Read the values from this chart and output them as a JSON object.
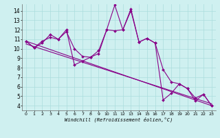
{
  "xlabel": "Windchill (Refroidissement éolien,°C)",
  "background_color": "#cff0f0",
  "line_color": "#880088",
  "marker": "D",
  "markersize": 2.0,
  "linewidth": 0.8,
  "xlim": [
    -0.5,
    23.5
  ],
  "ylim": [
    3.5,
    14.7
  ],
  "xticks": [
    0,
    1,
    2,
    3,
    4,
    5,
    6,
    7,
    8,
    9,
    10,
    11,
    12,
    13,
    14,
    15,
    16,
    17,
    18,
    19,
    20,
    21,
    22,
    23
  ],
  "yticks": [
    4,
    5,
    6,
    7,
    8,
    9,
    10,
    11,
    12,
    13,
    14
  ],
  "grid_color": "#aadddd",
  "series": [
    {
      "x": [
        0,
        1,
        2,
        3,
        4,
        5,
        6,
        7,
        8,
        9,
        10,
        11,
        12,
        13,
        14,
        15,
        16,
        17,
        18,
        19,
        20,
        21,
        22,
        23
      ],
      "y": [
        10.8,
        10.1,
        10.6,
        11.5,
        11.0,
        12.0,
        8.3,
        8.7,
        9.1,
        9.5,
        12.0,
        14.6,
        12.0,
        14.2,
        10.7,
        11.1,
        10.6,
        4.6,
        5.3,
        6.3,
        5.8,
        4.8,
        5.2,
        4.0
      ],
      "has_markers": true
    },
    {
      "x": [
        0,
        1,
        2,
        3,
        4,
        5,
        6,
        7,
        8,
        9,
        10,
        11,
        12,
        13,
        14,
        15,
        16,
        17,
        18,
        19,
        20,
        21,
        22,
        23
      ],
      "y": [
        10.8,
        10.1,
        10.8,
        11.2,
        11.0,
        11.8,
        10.0,
        9.2,
        9.1,
        9.8,
        12.0,
        11.9,
        12.0,
        14.0,
        10.7,
        11.1,
        10.6,
        7.8,
        6.5,
        6.3,
        5.8,
        4.5,
        5.2,
        4.0
      ],
      "has_markers": true
    },
    {
      "x": [
        0,
        23
      ],
      "y": [
        10.8,
        4.0
      ],
      "has_markers": false
    },
    {
      "x": [
        0,
        23
      ],
      "y": [
        10.5,
        4.2
      ],
      "has_markers": false
    }
  ]
}
